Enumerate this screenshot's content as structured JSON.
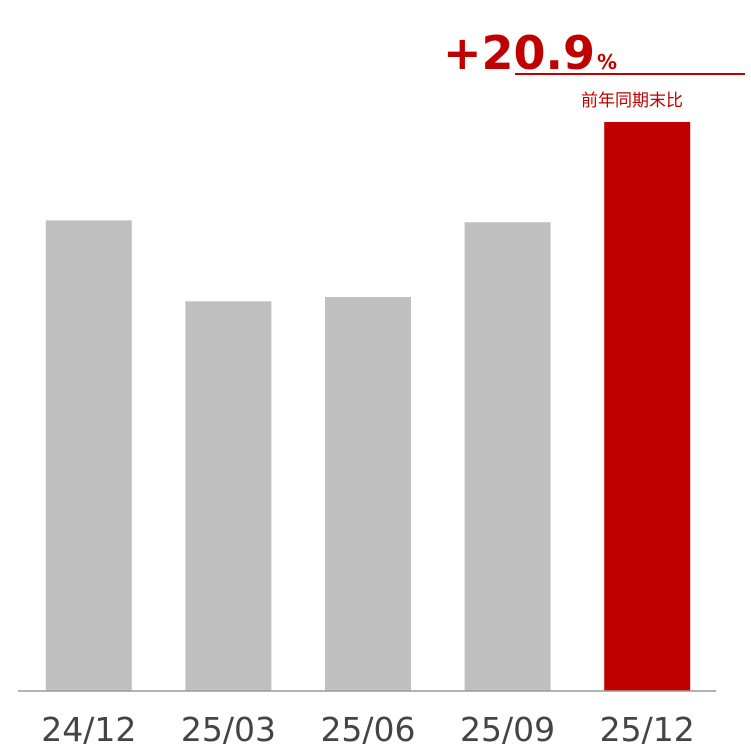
{
  "chart_data": {
    "type": "bar",
    "categories": [
      "24/12",
      "25/03",
      "25/06",
      "25/09",
      "25/12"
    ],
    "values": [
      100,
      82.8,
      83.7,
      99.6,
      120.9
    ],
    "colors": [
      "#bfbfbf",
      "#bfbfbf",
      "#bfbfbf",
      "#bfbfbf",
      "#c00000"
    ],
    "ylim": [
      0,
      120.9
    ],
    "annotation": {
      "text": "+20.9",
      "suffix": "%",
      "label": "前年同期末比"
    }
  }
}
